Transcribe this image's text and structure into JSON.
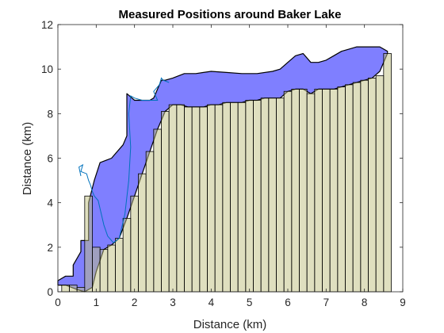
{
  "chart_data": {
    "type": "area",
    "title": "Measured Positions around Baker Lake",
    "xlabel": "Distance (km)",
    "ylabel": "Distance (km)",
    "xlim": [
      0,
      9
    ],
    "ylim": [
      0,
      12
    ],
    "xticks": [
      "0",
      "1",
      "2",
      "3",
      "4",
      "5",
      "6",
      "7",
      "8",
      "9"
    ],
    "yticks": [
      "0",
      "2",
      "4",
      "6",
      "8",
      "10",
      "12"
    ],
    "grid": false,
    "colors": {
      "lake_fill": "#7f7fff",
      "lake_outline": "#000000",
      "land_fill": "#bfbf7f",
      "bar_outline": "#000000",
      "raw_trace": "#0072bd",
      "axes": "#262626"
    },
    "land_bars": {
      "x": [
        0.2,
        0.4,
        0.6,
        0.8,
        1.0,
        1.2,
        1.4,
        1.6,
        1.8,
        2.0,
        2.2,
        2.4,
        2.6,
        2.8,
        3.0,
        3.2,
        3.4,
        3.6,
        3.8,
        4.0,
        4.2,
        4.4,
        4.6,
        4.8,
        5.0,
        5.2,
        5.4,
        5.6,
        5.8,
        6.0,
        6.2,
        6.4,
        6.6,
        6.8,
        7.0,
        7.2,
        7.4,
        7.6,
        7.8,
        8.0,
        8.2,
        8.4,
        8.6
      ],
      "y": [
        0.3,
        0.3,
        0.2,
        4.3,
        2.0,
        1.9,
        2.1,
        2.4,
        3.3,
        4.3,
        5.3,
        6.3,
        7.3,
        8.1,
        8.4,
        8.4,
        8.3,
        8.3,
        8.3,
        8.4,
        8.4,
        8.5,
        8.5,
        8.5,
        8.6,
        8.6,
        8.7,
        8.7,
        8.7,
        9.0,
        9.1,
        9.1,
        8.9,
        9.1,
        9.1,
        9.1,
        9.2,
        9.3,
        9.4,
        9.5,
        9.6,
        9.7,
        10.7
      ]
    },
    "lake_outer": {
      "x": [
        0.0,
        0.2,
        0.4,
        0.4,
        0.6,
        0.6,
        0.7,
        0.8,
        0.8,
        0.95,
        1.1,
        1.25,
        1.4,
        1.5,
        1.7,
        1.8,
        1.8,
        2.0,
        2.4,
        2.5,
        2.7,
        2.8,
        3.0,
        3.3,
        3.6,
        4.0,
        4.4,
        4.8,
        5.2,
        5.6,
        5.8,
        6.0,
        6.2,
        6.4,
        6.6,
        6.8,
        7.0,
        7.2,
        7.4,
        7.6,
        7.8,
        8.0,
        8.2,
        8.4,
        8.6
      ],
      "y": [
        0.5,
        0.7,
        0.7,
        1.2,
        1.8,
        2.3,
        2.3,
        2.3,
        4.0,
        5.0,
        5.8,
        5.9,
        6.0,
        6.2,
        6.6,
        7.0,
        8.9,
        8.6,
        8.6,
        8.7,
        9.5,
        9.5,
        9.6,
        9.8,
        9.8,
        9.9,
        9.85,
        9.8,
        9.8,
        9.9,
        10.0,
        10.3,
        10.6,
        10.7,
        10.3,
        10.3,
        10.4,
        10.6,
        10.8,
        10.9,
        11.0,
        11.0,
        11.0,
        11.0,
        10.8
      ]
    },
    "lake_inner": {
      "x": [
        8.6,
        8.4,
        8.2,
        8.0,
        7.8,
        7.6,
        7.4,
        7.2,
        7.0,
        6.8,
        6.6,
        6.4,
        6.2,
        6.0,
        5.8,
        5.6,
        5.4,
        5.2,
        5.0,
        4.8,
        4.6,
        4.4,
        4.2,
        4.0,
        3.8,
        3.6,
        3.4,
        3.2,
        3.0,
        2.8,
        2.6,
        2.4,
        2.2,
        2.0,
        1.8,
        1.6,
        1.4,
        1.2,
        1.0,
        0.9,
        0.7,
        0.5,
        0.2,
        0.0
      ],
      "y": [
        10.7,
        9.9,
        9.6,
        9.5,
        9.4,
        9.3,
        9.2,
        9.1,
        9.1,
        9.1,
        8.9,
        9.1,
        9.1,
        9.0,
        8.7,
        8.7,
        8.7,
        8.6,
        8.6,
        8.5,
        8.5,
        8.5,
        8.4,
        8.4,
        8.3,
        8.3,
        8.3,
        8.4,
        8.4,
        8.1,
        7.3,
        6.3,
        5.3,
        4.3,
        3.3,
        2.4,
        2.1,
        1.9,
        0.9,
        0.2,
        0.0,
        0.1,
        0.3,
        0.3
      ]
    },
    "raw_trace": {
      "x": [
        0.6,
        0.55,
        0.65,
        0.6,
        0.75,
        0.8,
        0.85,
        0.9,
        0.95,
        1.05,
        1.2,
        1.3,
        1.45,
        1.6,
        1.75,
        1.85,
        1.9,
        1.85,
        1.9,
        2.0,
        2.2,
        2.4,
        2.6,
        2.5,
        2.65,
        2.7,
        2.75,
        2.9
      ],
      "y": [
        5.2,
        5.6,
        5.7,
        5.4,
        5.3,
        5.0,
        4.8,
        4.5,
        4.3,
        4.1,
        3.0,
        2.5,
        2.2,
        2.4,
        3.5,
        5.0,
        6.5,
        8.0,
        8.8,
        8.7,
        8.6,
        8.6,
        8.6,
        9.0,
        9.3,
        9.6,
        9.5,
        9.4
      ]
    }
  }
}
